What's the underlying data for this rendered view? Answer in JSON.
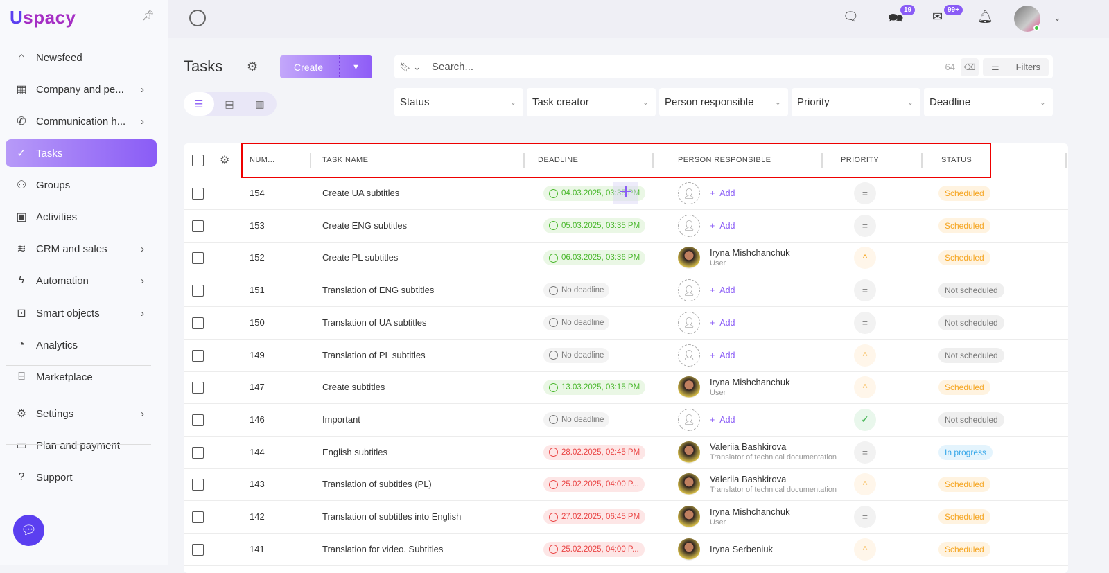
{
  "brand": {
    "logo_text": "uspacy"
  },
  "sidebar": {
    "items": [
      {
        "label": "Newsfeed",
        "icon": "home-icon",
        "glyph": "⌂",
        "chevron": false
      },
      {
        "label": "Company and pe...",
        "icon": "building-icon",
        "glyph": "▦",
        "chevron": true
      },
      {
        "label": "Communication h...",
        "icon": "chat-phone-icon",
        "glyph": "✆",
        "chevron": true
      },
      {
        "label": "Tasks",
        "icon": "check-circle-icon",
        "glyph": "✓",
        "chevron": false,
        "active": true
      },
      {
        "label": "Groups",
        "icon": "users-icon",
        "glyph": "⚇",
        "chevron": false
      },
      {
        "label": "Activities",
        "icon": "calendar-icon",
        "glyph": "▣",
        "chevron": false
      },
      {
        "label": "CRM and sales",
        "icon": "database-icon",
        "glyph": "≋",
        "chevron": true
      },
      {
        "label": "Automation",
        "icon": "lightning-icon",
        "glyph": "ϟ",
        "chevron": true
      },
      {
        "label": "Smart objects",
        "icon": "smart-object-icon",
        "glyph": "⊡",
        "chevron": true
      },
      {
        "label": "Analytics",
        "icon": "chart-icon",
        "glyph": "◔",
        "chevron": false
      },
      {
        "label": "Marketplace",
        "icon": "store-icon",
        "glyph": "⌸",
        "chevron": false
      },
      {
        "label": "Settings",
        "icon": "gear-icon",
        "glyph": "⚙",
        "chevron": true
      },
      {
        "label": "Plan and payment",
        "icon": "wallet-icon",
        "glyph": "▭",
        "chevron": false
      },
      {
        "label": "Support",
        "icon": "help-icon",
        "glyph": "?",
        "chevron": false
      }
    ]
  },
  "topbar": {
    "chat_badge": "19",
    "mail_badge": "99+"
  },
  "page": {
    "title": "Tasks",
    "create_label": "Create"
  },
  "search": {
    "placeholder": "Search...",
    "count": "64",
    "filters_label": "Filters"
  },
  "filters": [
    "Status",
    "Task creator",
    "Person responsible",
    "Priority",
    "Deadline"
  ],
  "table": {
    "columns": [
      "NUM...",
      "TASK NAME",
      "DEADLINE",
      "PERSON RESPONSIBLE",
      "PRIORITY",
      "STATUS"
    ],
    "add_label": "Add",
    "rows": [
      {
        "num": "154",
        "name": "Create UA subtitles",
        "deadline": "04.03.2025, 03:35 PM",
        "deadline_state": "upcoming",
        "person": null,
        "priority": "medium",
        "status": "Scheduled"
      },
      {
        "num": "153",
        "name": "Create ENG subtitles",
        "deadline": "05.03.2025, 03:35 PM",
        "deadline_state": "upcoming",
        "person": null,
        "priority": "medium",
        "status": "Scheduled"
      },
      {
        "num": "152",
        "name": "Create PL subtitles",
        "deadline": "06.03.2025, 03:36 PM",
        "deadline_state": "upcoming",
        "person": {
          "name": "Iryna Mishchanchuk",
          "role": "User"
        },
        "priority": "high",
        "status": "Scheduled"
      },
      {
        "num": "151",
        "name": "Translation of ENG subtitles",
        "deadline": "No deadline",
        "deadline_state": "none",
        "person": null,
        "priority": "medium",
        "status": "Not scheduled"
      },
      {
        "num": "150",
        "name": "Translation of UA subtitles",
        "deadline": "No deadline",
        "deadline_state": "none",
        "person": null,
        "priority": "medium",
        "status": "Not scheduled"
      },
      {
        "num": "149",
        "name": "Translation of PL subtitles",
        "deadline": "No deadline",
        "deadline_state": "none",
        "person": null,
        "priority": "high",
        "status": "Not scheduled"
      },
      {
        "num": "147",
        "name": "Create subtitles",
        "deadline": "13.03.2025, 03:15 PM",
        "deadline_state": "upcoming",
        "person": {
          "name": "Iryna Mishchanchuk",
          "role": "User"
        },
        "priority": "high",
        "status": "Scheduled"
      },
      {
        "num": "146",
        "name": "Important",
        "deadline": "No deadline",
        "deadline_state": "none",
        "person": null,
        "priority": "low",
        "status": "Not scheduled"
      },
      {
        "num": "144",
        "name": "English subtitles",
        "deadline": "28.02.2025, 02:45 PM",
        "deadline_state": "overdue",
        "person": {
          "name": "Valeriia Bashkirova",
          "role": "Translator of technical documentation"
        },
        "priority": "medium",
        "status": "In progress"
      },
      {
        "num": "143",
        "name": "Translation of subtitles (PL)",
        "deadline": "25.02.2025, 04:00 P...",
        "deadline_state": "overdue",
        "person": {
          "name": "Valeriia Bashkirova",
          "role": "Translator of technical documentation"
        },
        "priority": "high",
        "status": "Scheduled"
      },
      {
        "num": "142",
        "name": "Translation of subtitles into English",
        "deadline": "27.02.2025, 06:45 PM",
        "deadline_state": "overdue",
        "person": {
          "name": "Iryna Mishchanchuk",
          "role": "User"
        },
        "priority": "medium",
        "status": "Scheduled"
      },
      {
        "num": "141",
        "name": "Translation for video. Subtitles",
        "deadline": "25.02.2025, 04:00 P...",
        "deadline_state": "overdue",
        "person": {
          "name": "Iryna Serbeniuk",
          "role": ""
        },
        "priority": "high",
        "status": "Scheduled"
      }
    ]
  },
  "colors": {
    "accent": "#8a5cf6",
    "brand": "#5b3ff0",
    "highlight": "#e00000"
  }
}
